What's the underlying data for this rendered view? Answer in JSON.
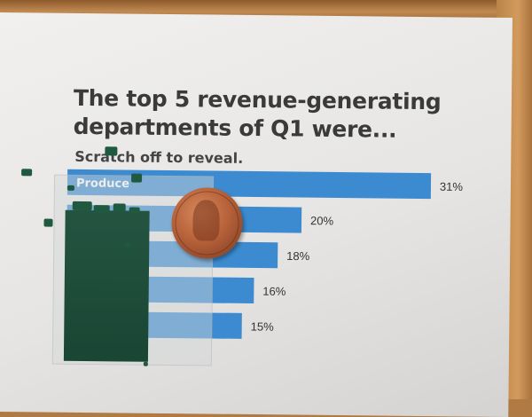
{
  "chart_data": {
    "type": "bar",
    "orientation": "horizontal",
    "title_lines": [
      "The top 5 revenue-generating",
      "departments of Q1 were..."
    ],
    "subtitle": "Scratch off to reveal.",
    "categories": [
      "Produce",
      "",
      "",
      "",
      ""
    ],
    "values": [
      31,
      20,
      18,
      16,
      15
    ],
    "value_labels": [
      "31%",
      "20%",
      "18%",
      "16%",
      "15%"
    ],
    "unit": "%",
    "xlim": [
      0,
      31
    ],
    "bar_color": "#3c8bd0",
    "bar_label_color": "#ffffff",
    "grid": false,
    "legend": "none"
  },
  "scene": {
    "scratch_color": "#1d4f3b",
    "penny_color": "#b7623a"
  }
}
